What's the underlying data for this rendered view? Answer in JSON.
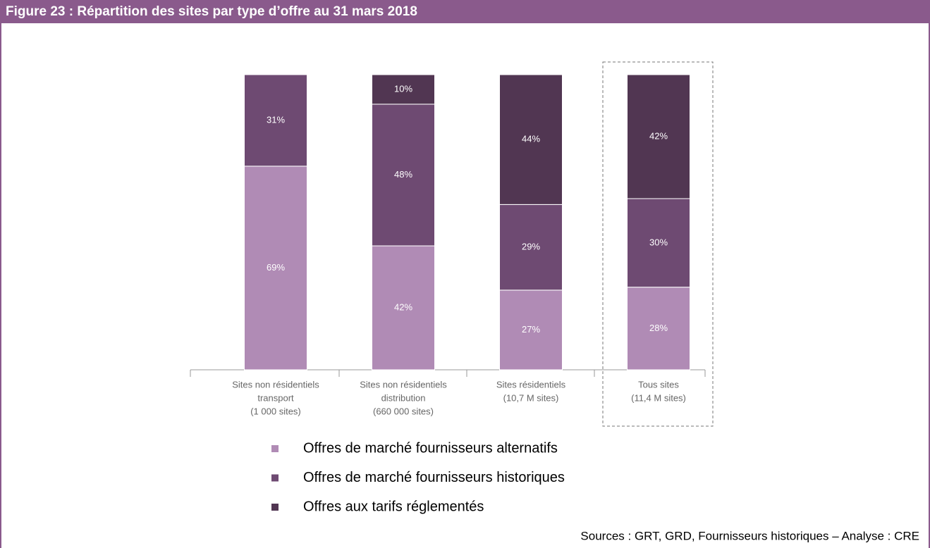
{
  "chart_data": {
    "type": "stacked_bar",
    "title": "Figure 23 : Répartition des sites par type d’offre au 31 mars 2018",
    "categories": [
      [
        "Sites non résidentiels",
        "transport",
        "(1 000 sites)"
      ],
      [
        "Sites non résidentiels",
        "distribution",
        "(660 000 sites)"
      ],
      [
        "Sites résidentiels",
        "(10,7 M sites)"
      ],
      [
        "Tous sites",
        "(11,4 M sites)"
      ]
    ],
    "series": [
      {
        "name": "Offres de marché fournisseurs alternatifs",
        "color": "#b08bb5",
        "values": [
          69,
          42,
          27,
          28
        ],
        "value_labels": [
          "69%",
          "42%",
          "27%",
          "28%"
        ]
      },
      {
        "name": "Offres de marché fournisseurs historiques",
        "color": "#6e4a72",
        "values": [
          31,
          48,
          29,
          30
        ],
        "value_labels": [
          "31%",
          "48%",
          "29%",
          "30%"
        ]
      },
      {
        "name": "Offres aux tarifs réglementés",
        "color": "#513652",
        "values": [
          null,
          10,
          44,
          42
        ],
        "value_labels": [
          null,
          "10%",
          "44%",
          "42%"
        ]
      }
    ],
    "ylim": [
      0,
      100
    ],
    "source": "Sources : GRT, GRD, Fournisseurs historiques – Analyse : CRE"
  }
}
